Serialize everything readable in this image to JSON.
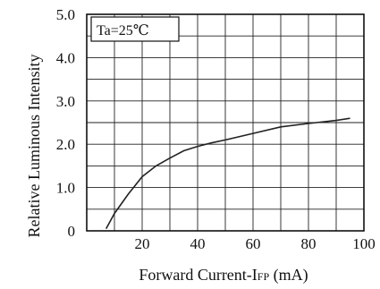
{
  "chart_data": {
    "type": "line",
    "title": "",
    "xlabel": {
      "main": "Forward Current-I",
      "sub": "FP",
      "unit": " (mA)"
    },
    "ylabel": "Relative Luminous Intensity",
    "xlim": [
      0,
      100
    ],
    "ylim": [
      0,
      5.0
    ],
    "x_tick_labels": [
      "20",
      "40",
      "60",
      "80",
      "100"
    ],
    "y_tick_labels": [
      "0",
      "1.0",
      "2.0",
      "3.0",
      "4.0",
      "5.0"
    ],
    "grid": true,
    "annotation": "Ta=25℃",
    "series": [
      {
        "x": [
          7,
          10,
          15,
          20,
          25,
          30,
          35,
          40,
          45,
          50,
          60,
          70,
          80,
          90,
          95
        ],
        "y": [
          0.05,
          0.4,
          0.85,
          1.25,
          1.5,
          1.68,
          1.85,
          1.95,
          2.03,
          2.1,
          2.25,
          2.4,
          2.48,
          2.55,
          2.6
        ]
      }
    ],
    "colors": {
      "line": "#222222",
      "grid": "#222222",
      "frame": "#111111"
    }
  }
}
